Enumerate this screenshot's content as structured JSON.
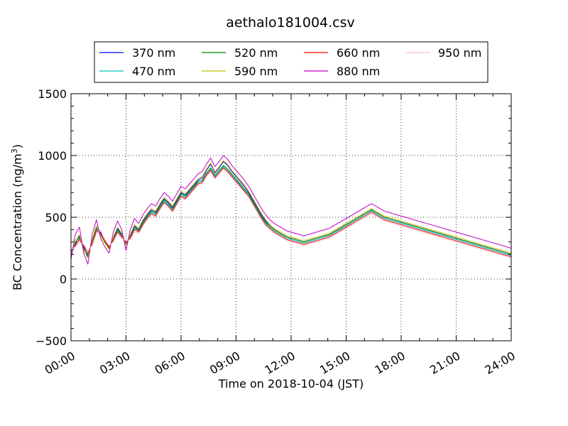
{
  "chart_data": {
    "type": "line",
    "title": "aethalo181004.csv",
    "xlabel": "Time on 2018-10-04 (JST)",
    "ylabel": "BC Concentration (ng/m³)",
    "ylabel_parts": {
      "main": "BC Concentration (ng/m",
      "sup": "3",
      "close": ")"
    },
    "xlim": [
      "00:00",
      "24:00"
    ],
    "ylim": [
      -500,
      1500
    ],
    "x_ticks": [
      "00:00",
      "03:00",
      "06:00",
      "09:00",
      "12:00",
      "15:00",
      "18:00",
      "21:00",
      "24:00"
    ],
    "y_ticks": [
      "−500",
      "0",
      "500",
      "1000",
      "1500"
    ],
    "grid": true,
    "legend_position": "top",
    "sample_interval_minutes": 5,
    "series": [
      {
        "name": "370 nm",
        "color": "#0000ff",
        "values": [
          200,
          280,
          350,
          260,
          180,
          310,
          420,
          380,
          300,
          250,
          330,
          410,
          360,
          290,
          350,
          430,
          400,
          470,
          520,
          560,
          540,
          600,
          650,
          620,
          580,
          640,
          700,
          680,
          720,
          760,
          800,
          820,
          880,
          930,
          860,
          900,
          950,
          920,
          870,
          830,
          790,
          750,
          700,
          640,
          580,
          520,
          470,
          430,
          400,
          380,
          360,
          340,
          330,
          320,
          310,
          300,
          310,
          320,
          330,
          340,
          350,
          360,
          380,
          400,
          420,
          440,
          460,
          480,
          500,
          520,
          540,
          560,
          540,
          520,
          500,
          490,
          480,
          470,
          460,
          450,
          440,
          430,
          420,
          410,
          400,
          390,
          380,
          370,
          360,
          350,
          340,
          330,
          320,
          310,
          300,
          290,
          280,
          270,
          260,
          250,
          240,
          230,
          220,
          210,
          200
        ]
      },
      {
        "name": "470 nm",
        "color": "#00c0c0",
        "values": [
          220,
          300,
          330,
          240,
          200,
          290,
          400,
          360,
          310,
          260,
          310,
          390,
          350,
          280,
          340,
          410,
          390,
          450,
          500,
          540,
          520,
          580,
          630,
          600,
          560,
          620,
          680,
          660,
          700,
          740,
          780,
          790,
          850,
          890,
          830,
          870,
          910,
          880,
          840,
          800,
          760,
          720,
          680,
          620,
          560,
          500,
          450,
          420,
          390,
          370,
          350,
          330,
          320,
          310,
          300,
          290,
          300,
          310,
          320,
          330,
          340,
          350,
          370,
          390,
          410,
          430,
          450,
          470,
          490,
          510,
          530,
          550,
          530,
          510,
          490,
          480,
          470,
          460,
          450,
          440,
          430,
          420,
          410,
          400,
          390,
          380,
          370,
          360,
          350,
          340,
          330,
          320,
          310,
          300,
          290,
          280,
          270,
          260,
          250,
          240,
          230,
          220,
          210,
          200,
          190
        ]
      },
      {
        "name": "520 nm",
        "color": "#008000",
        "values": [
          210,
          290,
          340,
          250,
          190,
          300,
          410,
          370,
          300,
          250,
          320,
          400,
          350,
          280,
          340,
          420,
          390,
          460,
          510,
          550,
          530,
          590,
          640,
          610,
          570,
          630,
          690,
          670,
          710,
          750,
          790,
          800,
          860,
          900,
          840,
          880,
          920,
          890,
          850,
          810,
          770,
          730,
          690,
          630,
          570,
          510,
          460,
          430,
          400,
          380,
          360,
          340,
          330,
          320,
          310,
          300,
          310,
          320,
          330,
          340,
          350,
          360,
          380,
          400,
          420,
          440,
          460,
          480,
          500,
          520,
          540,
          560,
          540,
          520,
          500,
          490,
          480,
          470,
          460,
          450,
          440,
          430,
          420,
          410,
          400,
          390,
          380,
          370,
          360,
          350,
          340,
          330,
          320,
          310,
          300,
          290,
          280,
          270,
          260,
          250,
          240,
          230,
          220,
          210,
          200
        ]
      },
      {
        "name": "590 nm",
        "color": "#bfbf00",
        "values": [
          190,
          310,
          360,
          230,
          170,
          320,
          430,
          350,
          290,
          240,
          340,
          420,
          370,
          270,
          360,
          440,
          410,
          480,
          530,
          570,
          550,
          610,
          660,
          630,
          590,
          650,
          710,
          690,
          730,
          770,
          810,
          830,
          890,
          940,
          870,
          910,
          960,
          930,
          880,
          840,
          800,
          760,
          710,
          650,
          590,
          530,
          480,
          440,
          410,
          390,
          370,
          350,
          340,
          330,
          320,
          310,
          320,
          330,
          340,
          350,
          360,
          370,
          390,
          410,
          430,
          450,
          470,
          490,
          510,
          530,
          550,
          570,
          550,
          530,
          510,
          500,
          490,
          480,
          470,
          460,
          450,
          440,
          430,
          420,
          410,
          400,
          390,
          380,
          370,
          360,
          350,
          340,
          330,
          320,
          310,
          300,
          290,
          280,
          270,
          260,
          250,
          240,
          230,
          220,
          210
        ]
      },
      {
        "name": "660 nm",
        "color": "#ff0000",
        "values": [
          230,
          270,
          320,
          270,
          210,
          280,
          390,
          370,
          310,
          260,
          320,
          380,
          340,
          300,
          330,
          400,
          380,
          440,
          490,
          530,
          510,
          570,
          620,
          590,
          550,
          610,
          670,
          650,
          690,
          730,
          770,
          780,
          840,
          880,
          820,
          860,
          900,
          870,
          830,
          790,
          750,
          710,
          670,
          610,
          550,
          490,
          440,
          410,
          380,
          360,
          340,
          320,
          310,
          300,
          290,
          280,
          290,
          300,
          310,
          320,
          330,
          340,
          360,
          380,
          400,
          420,
          440,
          460,
          480,
          500,
          520,
          540,
          520,
          500,
          480,
          470,
          460,
          450,
          440,
          430,
          420,
          410,
          400,
          390,
          380,
          370,
          360,
          350,
          340,
          330,
          320,
          310,
          300,
          290,
          280,
          270,
          260,
          250,
          240,
          230,
          220,
          210,
          200,
          190,
          180
        ]
      },
      {
        "name": "880 nm",
        "color": "#bf00bf",
        "values": [
          160,
          360,
          420,
          210,
          120,
          360,
          480,
          330,
          260,
          210,
          380,
          470,
          400,
          230,
          400,
          490,
          450,
          520,
          570,
          610,
          590,
          650,
          700,
          670,
          630,
          690,
          750,
          730,
          770,
          810,
          850,
          870,
          930,
          980,
          910,
          950,
          1000,
          970,
          920,
          880,
          840,
          800,
          750,
          690,
          630,
          570,
          520,
          480,
          450,
          430,
          410,
          390,
          380,
          370,
          360,
          350,
          360,
          370,
          380,
          390,
          400,
          410,
          430,
          450,
          470,
          490,
          510,
          530,
          550,
          570,
          590,
          610,
          590,
          570,
          550,
          540,
          530,
          520,
          510,
          500,
          490,
          480,
          470,
          460,
          450,
          440,
          430,
          420,
          410,
          400,
          390,
          380,
          370,
          360,
          350,
          340,
          330,
          320,
          310,
          300,
          290,
          280,
          270,
          260,
          250
        ]
      },
      {
        "name": "950 nm",
        "color": "#ffc0cb",
        "values": [
          240,
          260,
          300,
          280,
          230,
          270,
          370,
          390,
          320,
          270,
          300,
          360,
          330,
          310,
          320,
          380,
          370,
          430,
          480,
          520,
          500,
          560,
          610,
          580,
          540,
          600,
          660,
          640,
          680,
          720,
          760,
          770,
          830,
          870,
          810,
          850,
          890,
          860,
          820,
          780,
          740,
          700,
          660,
          600,
          540,
          480,
          430,
          400,
          370,
          350,
          330,
          310,
          300,
          290,
          280,
          270,
          280,
          290,
          300,
          310,
          320,
          330,
          350,
          370,
          390,
          410,
          430,
          450,
          470,
          490,
          510,
          530,
          510,
          490,
          470,
          460,
          450,
          440,
          430,
          420,
          410,
          400,
          390,
          380,
          370,
          360,
          350,
          340,
          330,
          320,
          310,
          300,
          290,
          280,
          270,
          260,
          250,
          240,
          230,
          220,
          210,
          200,
          190,
          180,
          170
        ]
      }
    ]
  }
}
